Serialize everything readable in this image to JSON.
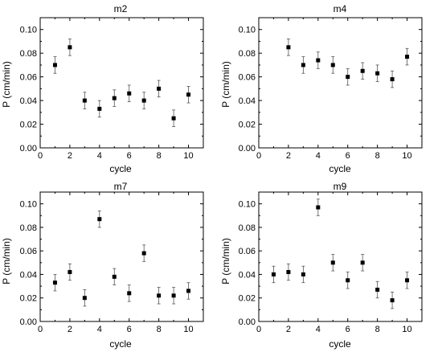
{
  "chart_data": [
    {
      "type": "scatter",
      "title": "m2",
      "xlabel": "cycle",
      "ylabel": "P (cm/min)",
      "xlim": [
        0,
        11
      ],
      "ylim": [
        0.0,
        0.11
      ],
      "xticks": [
        0,
        2,
        4,
        6,
        8,
        10
      ],
      "yticks": [
        "0.00",
        "0.02",
        "0.04",
        "0.06",
        "0.08",
        "0.10"
      ],
      "error_bars": true,
      "marker": "square",
      "x": [
        1,
        2,
        3,
        4,
        5,
        6,
        7,
        8,
        9,
        10
      ],
      "y": [
        0.07,
        0.085,
        0.04,
        0.033,
        0.042,
        0.046,
        0.04,
        0.05,
        0.025,
        0.045
      ],
      "error": [
        0.007,
        0.007,
        0.007,
        0.007,
        0.007,
        0.007,
        0.007,
        0.007,
        0.007,
        0.007
      ]
    },
    {
      "type": "scatter",
      "title": "m4",
      "xlabel": "cycle",
      "ylabel": "P (cm/min)",
      "xlim": [
        0,
        11
      ],
      "ylim": [
        0.0,
        0.11
      ],
      "xticks": [
        0,
        2,
        4,
        6,
        8,
        10
      ],
      "yticks": [
        "0.00",
        "0.02",
        "0.04",
        "0.06",
        "0.08",
        "0.10"
      ],
      "error_bars": true,
      "marker": "square",
      "x": [
        2,
        3,
        4,
        5,
        6,
        7,
        8,
        9,
        10
      ],
      "y": [
        0.085,
        0.07,
        0.074,
        0.07,
        0.06,
        0.065,
        0.063,
        0.058,
        0.077
      ],
      "error": [
        0.007,
        0.007,
        0.007,
        0.007,
        0.007,
        0.007,
        0.007,
        0.007,
        0.007
      ]
    },
    {
      "type": "scatter",
      "title": "m7",
      "xlabel": "cycle",
      "ylabel": "P (cm/min)",
      "xlim": [
        0,
        11
      ],
      "ylim": [
        0.0,
        0.11
      ],
      "xticks": [
        0,
        2,
        4,
        6,
        8,
        10
      ],
      "yticks": [
        "0.00",
        "0.02",
        "0.04",
        "0.06",
        "0.08",
        "0.10"
      ],
      "error_bars": true,
      "marker": "square",
      "x": [
        1,
        2,
        3,
        4,
        5,
        6,
        7,
        8,
        9,
        10
      ],
      "y": [
        0.033,
        0.042,
        0.02,
        0.087,
        0.038,
        0.024,
        0.058,
        0.022,
        0.022,
        0.026
      ],
      "error": [
        0.007,
        0.007,
        0.007,
        0.007,
        0.007,
        0.007,
        0.007,
        0.007,
        0.007,
        0.007
      ]
    },
    {
      "type": "scatter",
      "title": "m9",
      "xlabel": "cycle",
      "ylabel": "P (cm/min)",
      "xlim": [
        0,
        11
      ],
      "ylim": [
        0.0,
        0.11
      ],
      "xticks": [
        0,
        2,
        4,
        6,
        8,
        10
      ],
      "yticks": [
        "0.00",
        "0.02",
        "0.04",
        "0.06",
        "0.08",
        "0.10"
      ],
      "error_bars": true,
      "marker": "square",
      "x": [
        1,
        2,
        3,
        4,
        5,
        6,
        7,
        8,
        9,
        10
      ],
      "y": [
        0.04,
        0.042,
        0.04,
        0.097,
        0.05,
        0.035,
        0.05,
        0.027,
        0.018,
        0.035
      ],
      "error": [
        0.007,
        0.007,
        0.007,
        0.007,
        0.007,
        0.007,
        0.007,
        0.007,
        0.007,
        0.007
      ]
    }
  ]
}
